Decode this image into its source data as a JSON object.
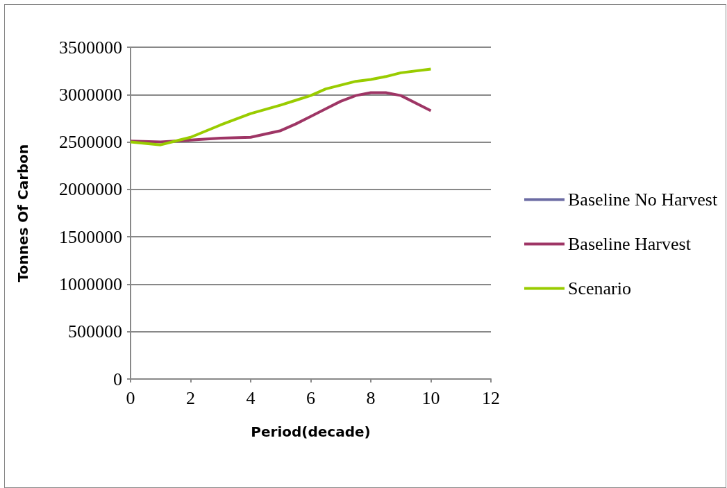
{
  "chart_data": {
    "type": "line",
    "xlabel": "Period(decade)",
    "ylabel": "Tonnes Of Carbon",
    "x": [
      0,
      1,
      2,
      3,
      4,
      5,
      5.5,
      6,
      6.5,
      7,
      7.5,
      8,
      8.5,
      9,
      10
    ],
    "series": [
      {
        "name": "Baseline No Harvest",
        "color": "#6b6ba3",
        "values": [
          null,
          null,
          null,
          null,
          null,
          null,
          null,
          null,
          null,
          null,
          null,
          null,
          null,
          null,
          null
        ]
      },
      {
        "name": "Baseline Harvest",
        "color": "#9e3565",
        "values": [
          2510000,
          2500000,
          2520000,
          2540000,
          2550000,
          2620000,
          2690000,
          2770000,
          2850000,
          2930000,
          2990000,
          3020000,
          3020000,
          2990000,
          2830000
        ]
      },
      {
        "name": "Scenario",
        "color": "#99cc00",
        "values": [
          2500000,
          2470000,
          2550000,
          2680000,
          2800000,
          2890000,
          2940000,
          2990000,
          3060000,
          3100000,
          3140000,
          3160000,
          3190000,
          3230000,
          3270000
        ]
      }
    ],
    "xlim": [
      0,
      12
    ],
    "xticks": [
      0,
      2,
      4,
      6,
      8,
      10,
      12
    ],
    "ylim": [
      0,
      3500000
    ],
    "yticks": [
      0,
      500000,
      1000000,
      1500000,
      2000000,
      2500000,
      3000000,
      3500000
    ],
    "grid": "y",
    "legend": "right",
    "marker": "none",
    "line_style": "solid"
  }
}
